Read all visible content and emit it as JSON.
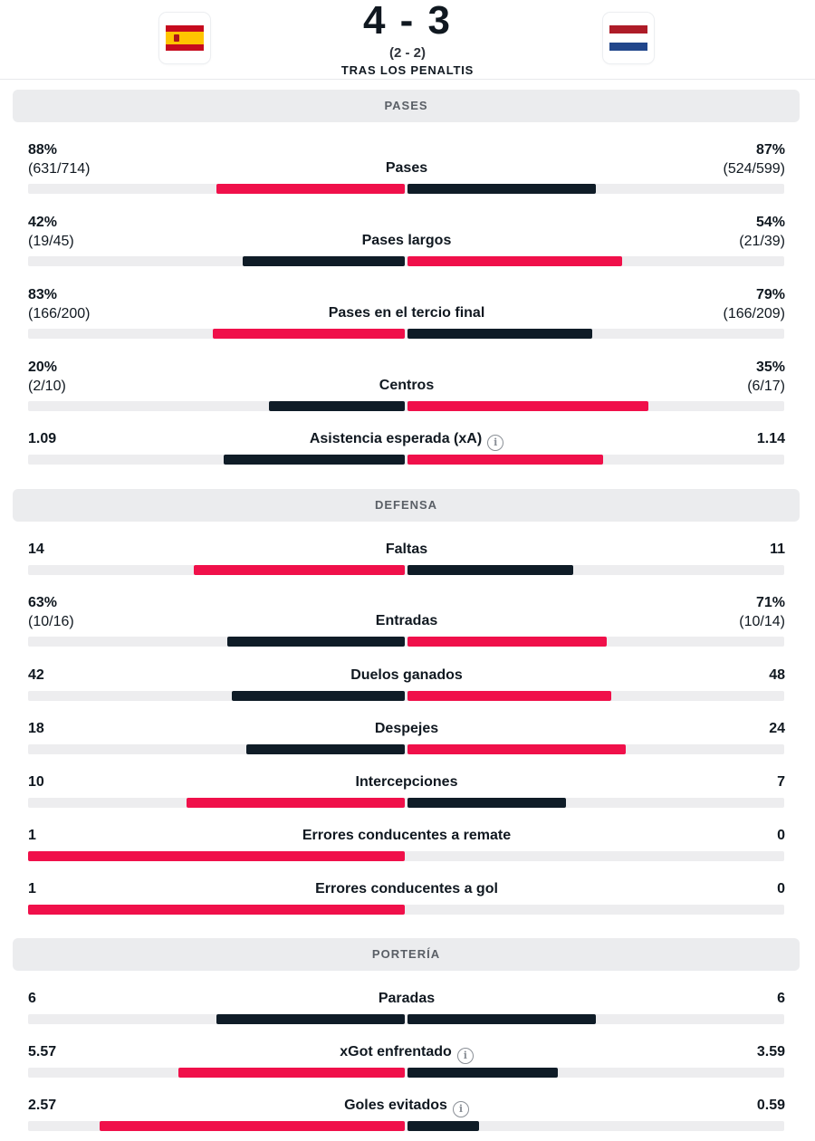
{
  "match": {
    "score": "4 - 3",
    "aggregate": "(2 - 2)",
    "note": "TRAS LOS PENALTIS",
    "home_flag": "spain-flag",
    "away_flag": "netherlands-flag"
  },
  "colors": {
    "highlight": "#f0104a",
    "neutral": "#0f1c27",
    "track": "#ededef"
  },
  "sections": {
    "pases": "PASES",
    "defensa": "DEFENSA",
    "porteria": "PORTERÍA"
  },
  "stats": [
    {
      "label": "Pases",
      "left": "88%",
      "left_sub": "(631/714)",
      "right": "87%",
      "right_sub": "(524/599)",
      "left_fill": 0.5,
      "right_fill": 0.5,
      "left_color": "red",
      "right_color": "navy"
    },
    {
      "label": "Pases largos",
      "left": "42%",
      "left_sub": "(19/45)",
      "right": "54%",
      "right_sub": "(21/39)",
      "left_fill": 0.43,
      "right_fill": 0.57,
      "left_color": "navy",
      "right_color": "red"
    },
    {
      "label": "Pases en el tercio final",
      "left": "83%",
      "left_sub": "(166/200)",
      "right": "79%",
      "right_sub": "(166/209)",
      "left_fill": 0.51,
      "right_fill": 0.49,
      "left_color": "red",
      "right_color": "navy"
    },
    {
      "label": "Centros",
      "left": "20%",
      "left_sub": "(2/10)",
      "right": "35%",
      "right_sub": "(6/17)",
      "left_fill": 0.36,
      "right_fill": 0.64,
      "left_color": "navy",
      "right_color": "red"
    },
    {
      "label": "Asistencia esperada (xA)",
      "info": true,
      "left": "1.09",
      "right": "1.14",
      "left_fill": 0.48,
      "right_fill": 0.52,
      "left_color": "navy",
      "right_color": "red"
    },
    {
      "label": "Faltas",
      "left": "14",
      "right": "11",
      "left_fill": 0.56,
      "right_fill": 0.44,
      "left_color": "red",
      "right_color": "navy"
    },
    {
      "label": "Entradas",
      "left": "63%",
      "left_sub": "(10/16)",
      "right": "71%",
      "right_sub": "(10/14)",
      "left_fill": 0.47,
      "right_fill": 0.53,
      "left_color": "navy",
      "right_color": "red"
    },
    {
      "label": "Duelos ganados",
      "left": "42",
      "right": "48",
      "left_fill": 0.46,
      "right_fill": 0.54,
      "left_color": "navy",
      "right_color": "red"
    },
    {
      "label": "Despejes",
      "left": "18",
      "right": "24",
      "left_fill": 0.42,
      "right_fill": 0.58,
      "left_color": "navy",
      "right_color": "red"
    },
    {
      "label": "Intercepciones",
      "left": "10",
      "right": "7",
      "left_fill": 0.58,
      "right_fill": 0.42,
      "left_color": "red",
      "right_color": "navy"
    },
    {
      "label": "Errores conducentes a remate",
      "left": "1",
      "right": "0",
      "left_fill": 1.0,
      "right_fill": 0.0,
      "left_color": "red",
      "right_color": "navy"
    },
    {
      "label": "Errores conducentes a gol",
      "left": "1",
      "right": "0",
      "left_fill": 1.0,
      "right_fill": 0.0,
      "left_color": "red",
      "right_color": "navy"
    },
    {
      "label": "Paradas",
      "left": "6",
      "right": "6",
      "left_fill": 0.5,
      "right_fill": 0.5,
      "left_color": "navy",
      "right_color": "navy"
    },
    {
      "label": "xGot enfrentado",
      "info": true,
      "left": "5.57",
      "right": "3.59",
      "left_fill": 0.6,
      "right_fill": 0.4,
      "left_color": "red",
      "right_color": "navy"
    },
    {
      "label": "Goles evitados",
      "info": true,
      "left": "2.57",
      "right": "0.59",
      "left_fill": 0.81,
      "right_fill": 0.19,
      "left_color": "red",
      "right_color": "navy"
    }
  ]
}
